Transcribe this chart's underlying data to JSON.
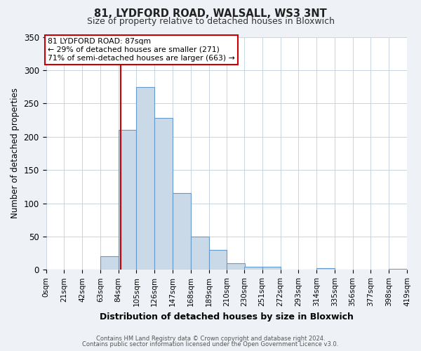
{
  "title": "81, LYDFORD ROAD, WALSALL, WS3 3NT",
  "subtitle": "Size of property relative to detached houses in Bloxwich",
  "xlabel": "Distribution of detached houses by size in Bloxwich",
  "ylabel": "Number of detached properties",
  "bin_edges": [
    0,
    21,
    42,
    63,
    84,
    105,
    126,
    147,
    168,
    189,
    210,
    230,
    251,
    272,
    293,
    314,
    335,
    356,
    377,
    398,
    419
  ],
  "counts": [
    0,
    0,
    0,
    20,
    210,
    275,
    228,
    115,
    50,
    30,
    10,
    5,
    5,
    0,
    0,
    2,
    0,
    0,
    0,
    1
  ],
  "tick_labels": [
    "0sqm",
    "21sqm",
    "42sqm",
    "63sqm",
    "84sqm",
    "105sqm",
    "126sqm",
    "147sqm",
    "168sqm",
    "189sqm",
    "210sqm",
    "230sqm",
    "251sqm",
    "272sqm",
    "293sqm",
    "314sqm",
    "335sqm",
    "356sqm",
    "377sqm",
    "398sqm",
    "419sqm"
  ],
  "property_size": 87,
  "property_label": "81 LYDFORD ROAD: 87sqm",
  "pct_smaller": 29,
  "n_smaller": 271,
  "pct_larger": 71,
  "n_larger": 663,
  "bar_color": "#c9d9e8",
  "bar_edge_color": "#6699cc",
  "vline_color": "#cc0000",
  "annotation_box_edge": "#cc0000",
  "ylim": [
    0,
    350
  ],
  "yticks": [
    0,
    50,
    100,
    150,
    200,
    250,
    300,
    350
  ],
  "background_color": "#eef2f7",
  "plot_bg_color": "#ffffff",
  "footer1": "Contains HM Land Registry data © Crown copyright and database right 2024.",
  "footer2": "Contains public sector information licensed under the Open Government Licence v3.0."
}
